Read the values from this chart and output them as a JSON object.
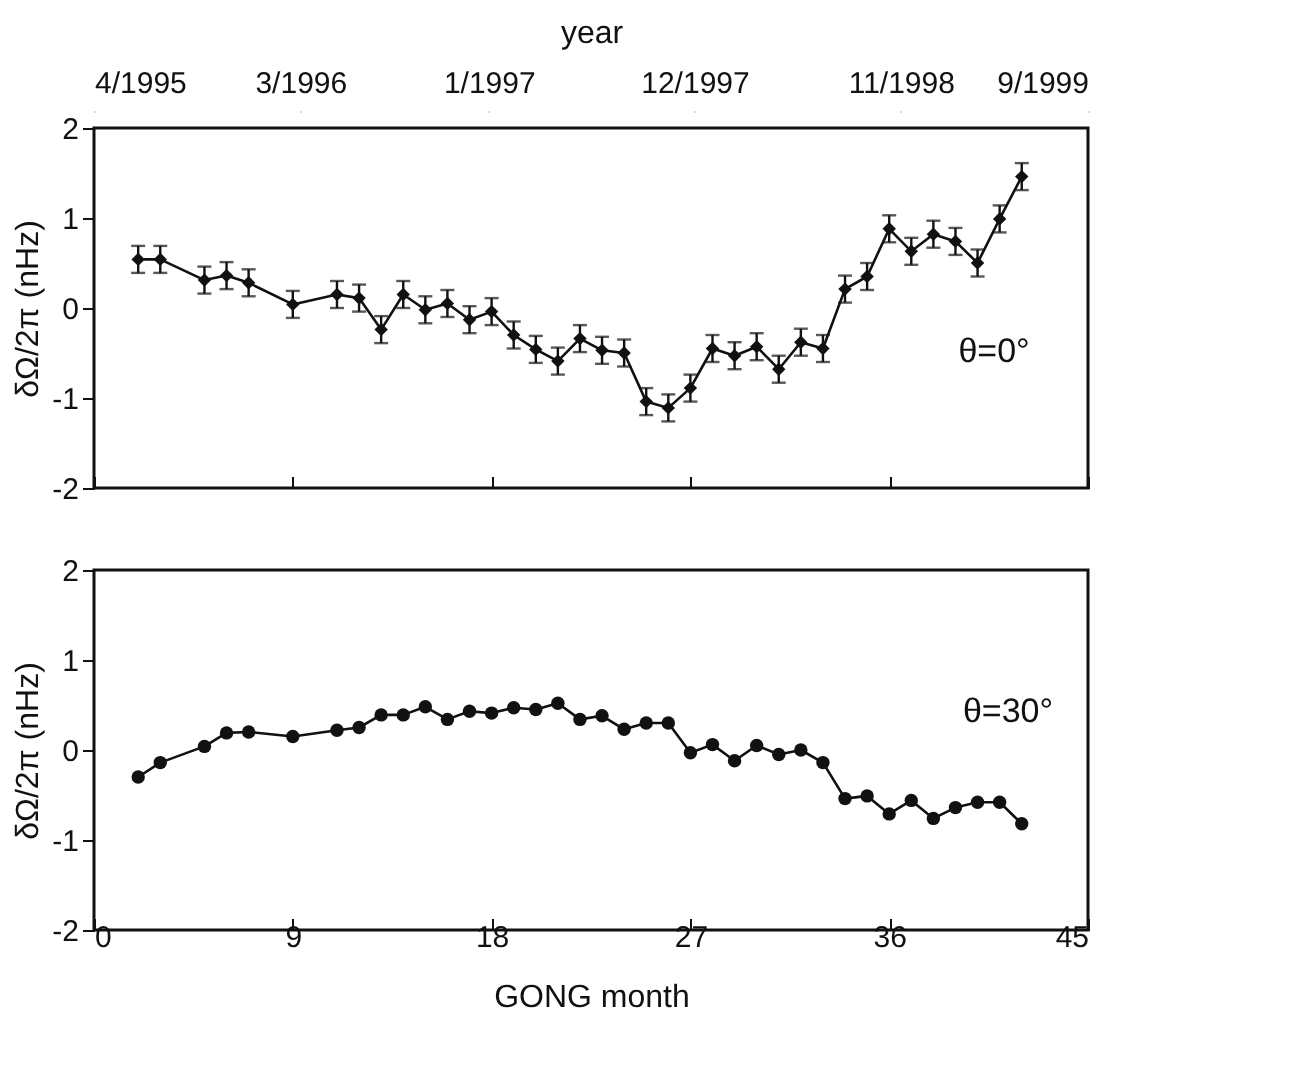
{
  "chart_data": [
    {
      "type": "line",
      "ylabel": "δΩ/2π (nHz)",
      "x2label": "year",
      "color": "#111111",
      "marker": "diamond",
      "line_style": "solid",
      "grid": false,
      "tick_labels": "y",
      "annotations": [
        "θ=0°"
      ],
      "x": [
        2,
        3,
        5,
        6,
        7,
        9,
        11,
        12,
        13,
        14,
        15,
        16,
        17,
        18,
        19,
        20,
        21,
        22,
        23,
        24,
        25,
        26,
        27,
        28,
        29,
        30,
        31,
        32,
        33,
        34,
        35,
        36,
        37,
        38,
        39,
        40,
        41,
        42
      ],
      "values": [
        0.54,
        0.54,
        0.31,
        0.36,
        0.28,
        0.04,
        0.15,
        0.11,
        -0.24,
        0.15,
        -0.02,
        0.05,
        -0.13,
        -0.04,
        -0.3,
        -0.46,
        -0.59,
        -0.34,
        -0.47,
        -0.5,
        -1.04,
        -1.11,
        -0.89,
        -0.45,
        -0.53,
        -0.43,
        -0.68,
        -0.38,
        -0.45,
        0.21,
        0.35,
        0.88,
        0.63,
        0.82,
        0.74,
        0.5,
        0.99,
        1.46
      ],
      "errors": [
        0.15,
        0.15,
        0.15,
        0.15,
        0.15,
        0.15,
        0.15,
        0.15,
        0.15,
        0.15,
        0.15,
        0.15,
        0.15,
        0.15,
        0.15,
        0.15,
        0.15,
        0.15,
        0.15,
        0.15,
        0.15,
        0.15,
        0.15,
        0.15,
        0.15,
        0.15,
        0.15,
        0.15,
        0.15,
        0.15,
        0.15,
        0.15,
        0.15,
        0.15,
        0.15,
        0.15,
        0.15,
        0.15
      ],
      "xlim": [
        0,
        45
      ],
      "xticks": [
        {
          "value": 0,
          "label": null
        },
        {
          "value": 9,
          "label": null
        },
        {
          "value": 18,
          "label": null
        },
        {
          "value": 27,
          "label": null
        },
        {
          "value": 36,
          "label": null
        },
        {
          "value": 45,
          "label": null
        }
      ],
      "x2lim": [
        "1995-04",
        "1999-09"
      ],
      "x2ticks": [
        {
          "value": "1995-04",
          "label": "4/1995"
        },
        {
          "value": "1996-03",
          "label": "3/1996"
        },
        {
          "value": "1997-01",
          "label": "1/1997"
        },
        {
          "value": "1997-12",
          "label": "12/1997"
        },
        {
          "value": "1998-11",
          "label": "11/1998"
        },
        {
          "value": "1999-09",
          "label": "9/1999"
        }
      ],
      "ylim": [
        -2,
        2
      ],
      "yticks": [
        -2,
        -1,
        0,
        1,
        2
      ]
    },
    {
      "type": "line",
      "ylabel": "δΩ/2π (nHz)",
      "xlabel": "GONG month",
      "color": "#111111",
      "marker": "circle",
      "line_style": "solid",
      "grid": false,
      "annotations": [
        "θ=30°"
      ],
      "x": [
        2,
        3,
        5,
        6,
        7,
        9,
        11,
        12,
        13,
        14,
        15,
        16,
        17,
        18,
        19,
        20,
        21,
        22,
        23,
        24,
        25,
        26,
        27,
        28,
        29,
        30,
        31,
        32,
        33,
        34,
        35,
        36,
        37,
        38,
        39,
        40,
        41,
        42
      ],
      "values": [
        -0.3,
        -0.14,
        0.04,
        0.19,
        0.2,
        0.15,
        0.22,
        0.25,
        0.39,
        0.39,
        0.48,
        0.34,
        0.43,
        0.41,
        0.47,
        0.45,
        0.52,
        0.34,
        0.38,
        0.23,
        0.3,
        0.3,
        -0.03,
        0.06,
        -0.12,
        0.05,
        -0.05,
        0.0,
        -0.14,
        -0.54,
        -0.51,
        -0.71,
        -0.56,
        -0.76,
        -0.64,
        -0.58,
        -0.58,
        -0.82
      ],
      "xlim": [
        0,
        45
      ],
      "xticks": [
        0,
        9,
        18,
        27,
        36,
        45
      ],
      "ylim": [
        -2,
        2
      ],
      "yticks": [
        -2,
        -1,
        0,
        1,
        2
      ]
    }
  ]
}
